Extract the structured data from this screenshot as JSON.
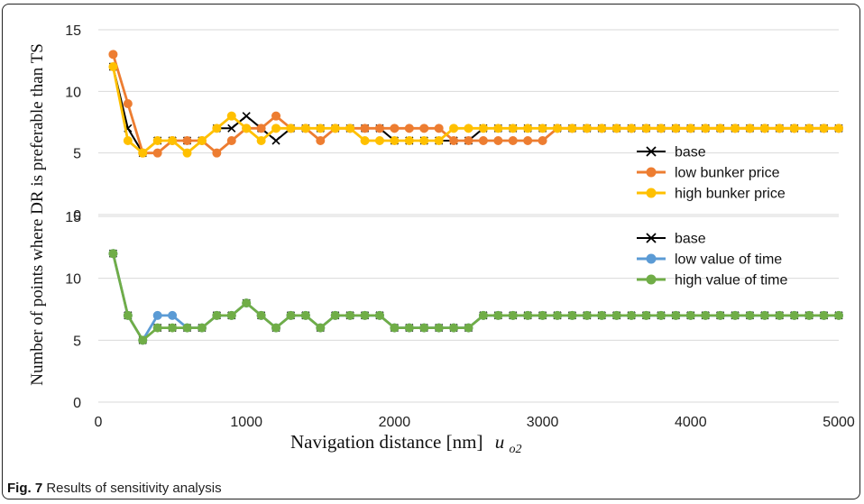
{
  "caption": {
    "label": "Fig. 7",
    "text": " Results of sensitivity analysis"
  },
  "chart_data": [
    {
      "type": "line",
      "ylabel": "Number of points where DR is preferable than TS",
      "ylim": [
        0,
        15
      ],
      "xlim": [
        0,
        5000
      ],
      "yticks": [
        "0",
        "5",
        "10",
        "15"
      ],
      "legend": "right",
      "x": [
        100,
        200,
        300,
        400,
        500,
        600,
        700,
        800,
        900,
        1000,
        1100,
        1200,
        1300,
        1400,
        1500,
        1600,
        1700,
        1800,
        1900,
        2000,
        2100,
        2200,
        2300,
        2400,
        2500,
        2600,
        2700,
        2800,
        2900,
        3000,
        3100,
        3200,
        3300,
        3400,
        3500,
        3600,
        3700,
        3800,
        3900,
        4000,
        4100,
        4200,
        4300,
        4400,
        4500,
        4600,
        4700,
        4800,
        4900,
        5000
      ],
      "series": [
        {
          "name": "base",
          "color": "#000000",
          "marker": "x",
          "values": [
            12,
            7,
            5,
            6,
            6,
            6,
            6,
            7,
            7,
            8,
            7,
            6,
            7,
            7,
            7,
            7,
            7,
            7,
            7,
            6,
            6,
            6,
            6,
            6,
            6,
            7,
            7,
            7,
            7,
            7,
            7,
            7,
            7,
            7,
            7,
            7,
            7,
            7,
            7,
            7,
            7,
            7,
            7,
            7,
            7,
            7,
            7,
            7,
            7,
            7
          ]
        },
        {
          "name": "low bunker price",
          "color": "#ED7D31",
          "marker": "circle",
          "values": [
            13,
            9,
            5,
            5,
            6,
            6,
            6,
            5,
            6,
            7,
            7,
            8,
            7,
            7,
            6,
            7,
            7,
            7,
            7,
            7,
            7,
            7,
            7,
            6,
            6,
            6,
            6,
            6,
            6,
            6,
            7,
            7,
            7,
            7,
            7,
            7,
            7,
            7,
            7,
            7,
            7,
            7,
            7,
            7,
            7,
            7,
            7,
            7,
            7,
            7
          ]
        },
        {
          "name": "high bunker price",
          "color": "#FFC000",
          "marker": "circle",
          "values": [
            12,
            6,
            5,
            6,
            6,
            5,
            6,
            7,
            8,
            7,
            6,
            7,
            7,
            7,
            7,
            7,
            7,
            6,
            6,
            6,
            6,
            6,
            6,
            7,
            7,
            7,
            7,
            7,
            7,
            7,
            7,
            7,
            7,
            7,
            7,
            7,
            7,
            7,
            7,
            7,
            7,
            7,
            7,
            7,
            7,
            7,
            7,
            7,
            7,
            7
          ]
        }
      ]
    },
    {
      "type": "line",
      "ylim": [
        0,
        15
      ],
      "xlim": [
        0,
        5000
      ],
      "xlabel": "Navigation distance [nm]",
      "xlabel_symbol": "u",
      "xlabel_subscript": "o2",
      "xticks": [
        "0",
        "1000",
        "2000",
        "3000",
        "4000",
        "5000"
      ],
      "yticks": [
        "0",
        "5",
        "10",
        "15"
      ],
      "legend": "top-right",
      "x": [
        100,
        200,
        300,
        400,
        500,
        600,
        700,
        800,
        900,
        1000,
        1100,
        1200,
        1300,
        1400,
        1500,
        1600,
        1700,
        1800,
        1900,
        2000,
        2100,
        2200,
        2300,
        2400,
        2500,
        2600,
        2700,
        2800,
        2900,
        3000,
        3100,
        3200,
        3300,
        3400,
        3500,
        3600,
        3700,
        3800,
        3900,
        4000,
        4100,
        4200,
        4300,
        4400,
        4500,
        4600,
        4700,
        4800,
        4900,
        5000
      ],
      "series": [
        {
          "name": "base",
          "color": "#000000",
          "marker": "x",
          "values": [
            12,
            7,
            5,
            6,
            6,
            6,
            6,
            7,
            7,
            8,
            7,
            6,
            7,
            7,
            6,
            7,
            7,
            7,
            7,
            6,
            6,
            6,
            6,
            6,
            6,
            7,
            7,
            7,
            7,
            7,
            7,
            7,
            7,
            7,
            7,
            7,
            7,
            7,
            7,
            7,
            7,
            7,
            7,
            7,
            7,
            7,
            7,
            7,
            7,
            7
          ]
        },
        {
          "name": "low value of time",
          "color": "#5B9BD5",
          "marker": "circle",
          "values": [
            12,
            7,
            5,
            7,
            7,
            6,
            6,
            7,
            7,
            8,
            7,
            6,
            7,
            7,
            6,
            7,
            7,
            7,
            7,
            6,
            6,
            6,
            6,
            6,
            6,
            7,
            7,
            7,
            7,
            7,
            7,
            7,
            7,
            7,
            7,
            7,
            7,
            7,
            7,
            7,
            7,
            7,
            7,
            7,
            7,
            7,
            7,
            7,
            7,
            7
          ]
        },
        {
          "name": "high value of time",
          "color": "#70AD47",
          "marker": "circle",
          "values": [
            12,
            7,
            5,
            6,
            6,
            6,
            6,
            7,
            7,
            8,
            7,
            6,
            7,
            7,
            6,
            7,
            7,
            7,
            7,
            6,
            6,
            6,
            6,
            6,
            6,
            7,
            7,
            7,
            7,
            7,
            7,
            7,
            7,
            7,
            7,
            7,
            7,
            7,
            7,
            7,
            7,
            7,
            7,
            7,
            7,
            7,
            7,
            7,
            7,
            7
          ]
        }
      ]
    }
  ]
}
